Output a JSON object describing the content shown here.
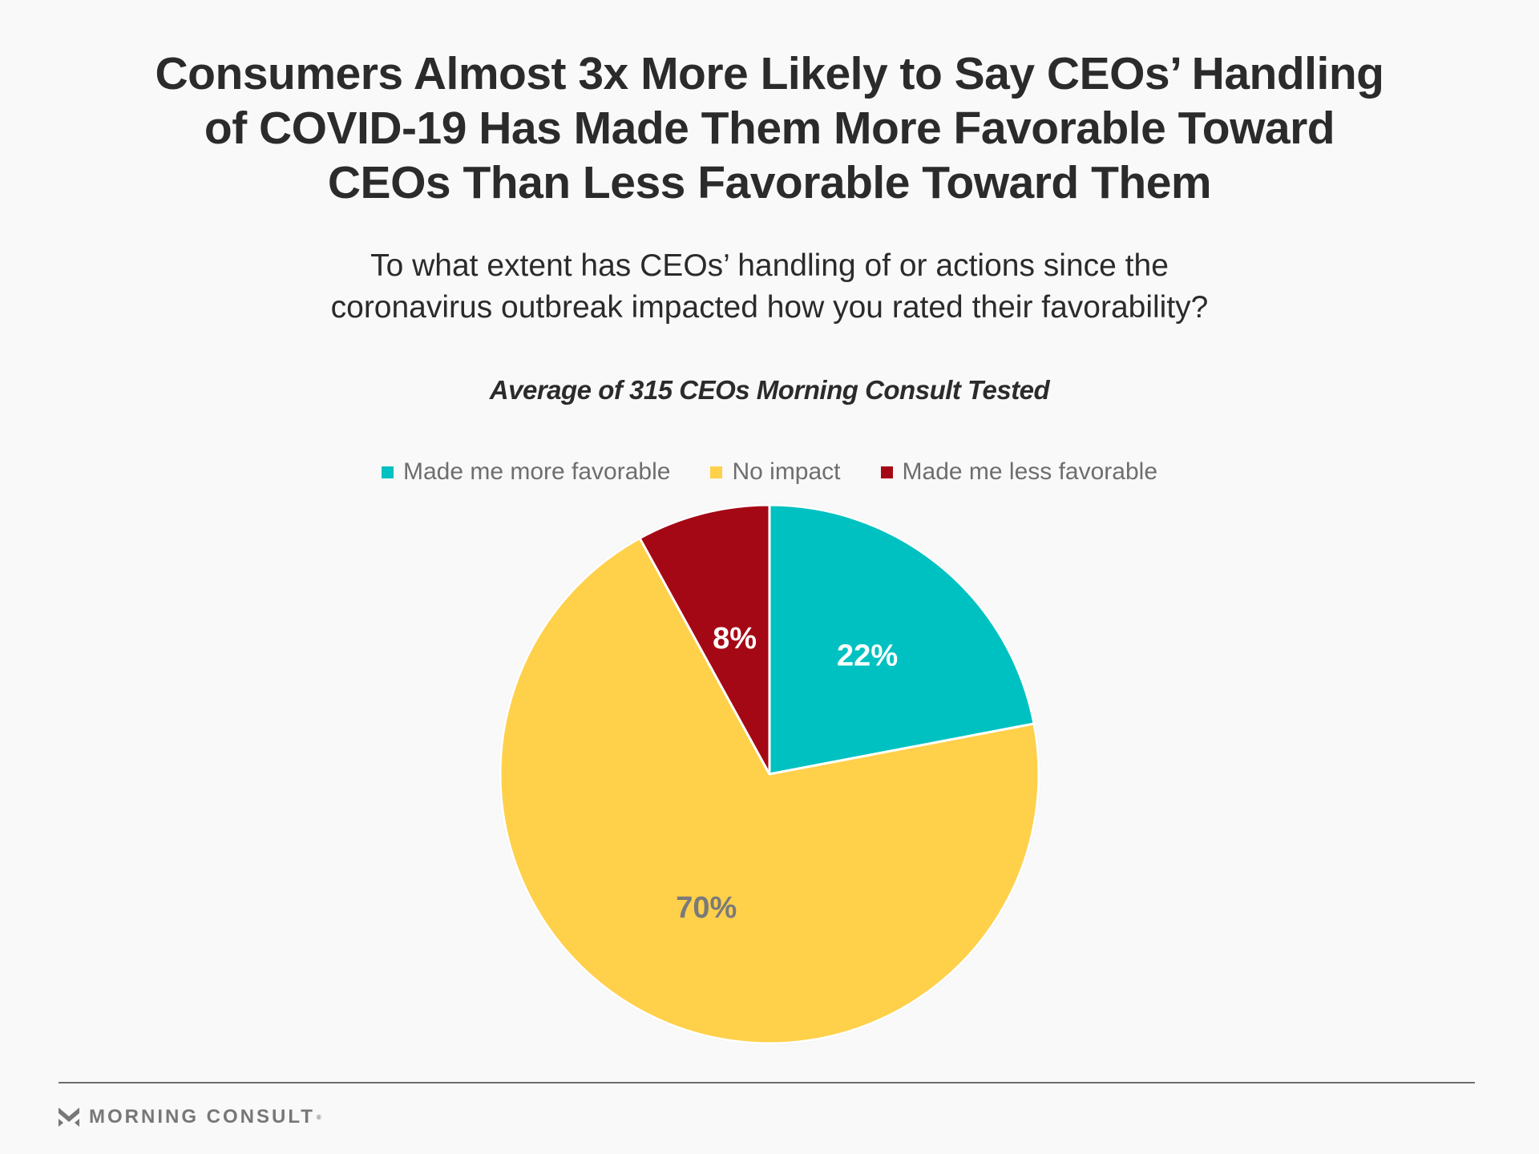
{
  "title_lines": [
    "Consumers Almost 3x More Likely to Say CEOs’ Handling",
    "of COVID-19 Has Made Them More Favorable Toward",
    "CEOs Than Less Favorable Toward Them"
  ],
  "question_lines": [
    "To what extent has CEOs’ handling of or actions since the",
    "coronavirus outbreak impacted how you rated their favorability?"
  ],
  "footer": {
    "brand": "MORNING CONSULT",
    "reg_mark": "®",
    "logo_icon": "morning-consult-m-icon"
  },
  "chart_data": {
    "type": "pie",
    "title": "Average of 315 CEOs Morning Consult Tested",
    "unit": "%",
    "legend_position": "top",
    "slices": [
      {
        "label": "Made me more favorable",
        "value": 22,
        "display": "22%",
        "color": "#00c1c1",
        "label_color": "#ffffff"
      },
      {
        "label": "No impact",
        "value": 70,
        "display": "70%",
        "color": "#ffd04a",
        "label_color": "#7a7a7a"
      },
      {
        "label": "Made me less favorable",
        "value": 8,
        "display": "8%",
        "color": "#a50815",
        "label_color": "#ffffff"
      }
    ]
  }
}
